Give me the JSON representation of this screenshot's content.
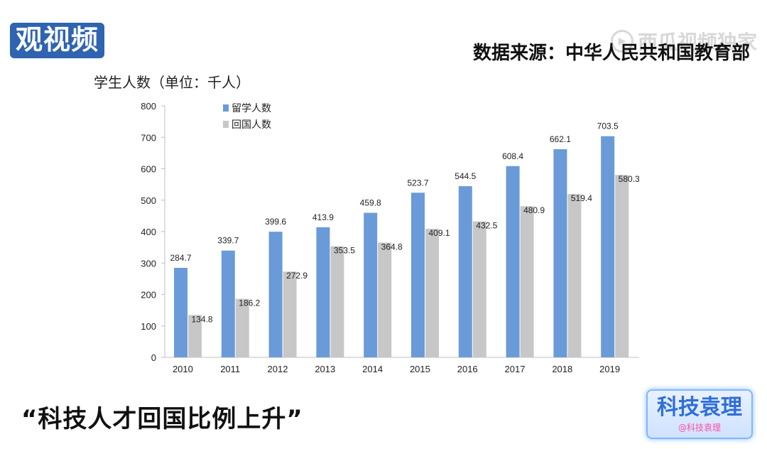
{
  "logo_left": "观视频",
  "logo_right": "西瓜视频独家",
  "source": "数据来源：中华人民共和国教育部",
  "caption": "“科技人才回国比例上升”",
  "badge": {
    "title": "科技袁理",
    "subtitle": "@科技袁理"
  },
  "colors": {
    "series1": "#6a9bd8",
    "series2": "#c7c7c7",
    "axis": "#bfbfbf"
  },
  "chart_data": {
    "type": "bar",
    "ylabel": "学生人数（单位：千人）",
    "categories": [
      "2010",
      "2011",
      "2012",
      "2013",
      "2014",
      "2015",
      "2016",
      "2017",
      "2018",
      "2019"
    ],
    "ylim": [
      0,
      800
    ],
    "yticks": [
      0,
      100,
      200,
      300,
      400,
      500,
      600,
      700,
      800
    ],
    "grid": false,
    "legend_position": "top-left",
    "series": [
      {
        "name": "留学人数",
        "values": [
          284.7,
          339.7,
          399.6,
          413.9,
          459.8,
          523.7,
          544.5,
          608.4,
          662.1,
          703.5
        ]
      },
      {
        "name": "回国人数",
        "values": [
          134.8,
          186.2,
          272.9,
          353.5,
          364.8,
          409.1,
          432.5,
          480.9,
          519.4,
          580.3
        ]
      }
    ]
  }
}
